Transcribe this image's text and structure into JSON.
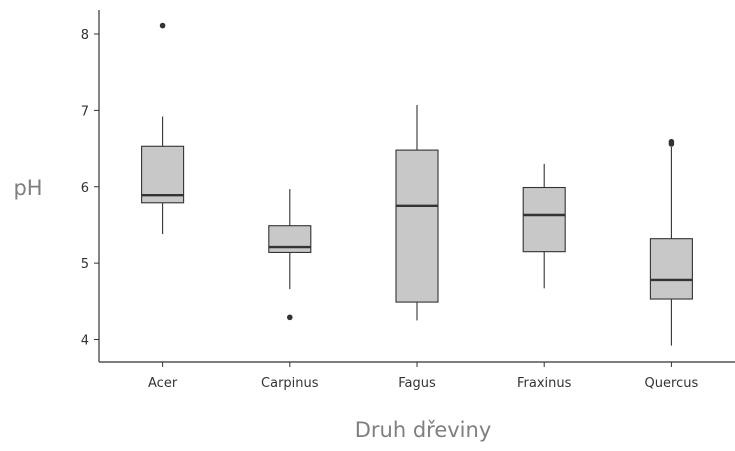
{
  "chart_data": {
    "type": "box",
    "title": "",
    "xlabel": "Druh dřeviny",
    "ylabel": "pH",
    "ylim": [
      3.7,
      8.3
    ],
    "yticks": [
      4,
      5,
      6,
      7,
      8
    ],
    "grid": false,
    "legend": "none",
    "categories": [
      "Acer",
      "Carpinus",
      "Fagus",
      "Fraxinus",
      "Quercus"
    ],
    "boxes": [
      {
        "category": "Acer",
        "whisker_low": 5.38,
        "q1": 5.79,
        "median": 5.89,
        "q3": 6.53,
        "whisker_high": 6.92,
        "outliers": [
          8.11
        ]
      },
      {
        "category": "Carpinus",
        "whisker_low": 4.66,
        "q1": 5.14,
        "median": 5.21,
        "q3": 5.49,
        "whisker_high": 5.97,
        "outliers": [
          4.29
        ]
      },
      {
        "category": "Fagus",
        "whisker_low": 4.25,
        "q1": 4.49,
        "median": 5.75,
        "q3": 6.48,
        "whisker_high": 7.07,
        "outliers": []
      },
      {
        "category": "Fraxinus",
        "whisker_low": 4.67,
        "q1": 5.15,
        "median": 5.63,
        "q3": 5.99,
        "whisker_high": 6.3,
        "outliers": []
      },
      {
        "category": "Quercus",
        "whisker_low": 3.92,
        "q1": 4.53,
        "median": 4.78,
        "q3": 5.32,
        "whisker_high": 6.52,
        "outliers": [
          6.56,
          6.59
        ]
      }
    ],
    "colors": {
      "box_fill": "#c8c8c8",
      "stroke": "#333333"
    }
  }
}
